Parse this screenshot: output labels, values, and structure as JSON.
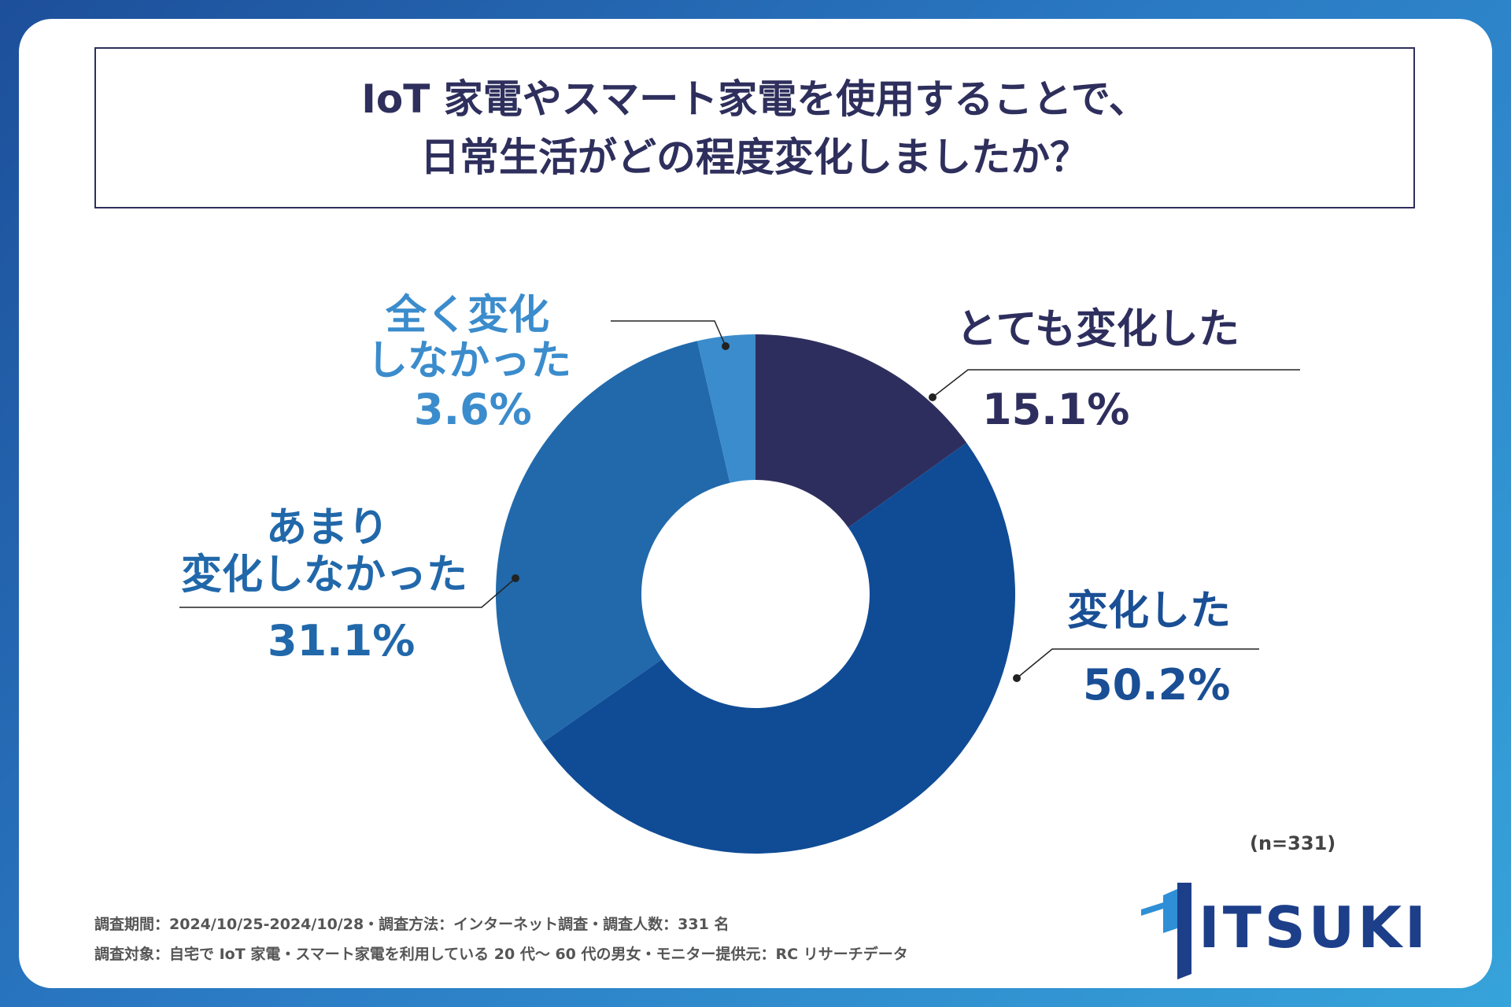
{
  "title": {
    "line1": "IoT 家電やスマート家電を使用することで、",
    "line2": "日常生活がどの程度変化しましたか？"
  },
  "chart_data": {
    "type": "pie",
    "style": "donut",
    "categories": [
      "とても変化した",
      "変化した",
      "あまり変化しなかった",
      "全く変化しなかった"
    ],
    "values": [
      15.1,
      50.2,
      31.1,
      3.6
    ],
    "value_labels": [
      "15.1%",
      "50.2%",
      "31.1%",
      "3.6%"
    ],
    "colors": [
      "#2e2e5e",
      "#104c96",
      "#2169ab",
      "#3b8ccc"
    ],
    "label_lines": {
      "very": "とても変化した",
      "changed": "変化した",
      "notmuch1": "あまり",
      "notmuch2": "変化しなかった",
      "none1": "全く変化",
      "none2": "しなかった"
    },
    "n_label": "(n=331)"
  },
  "footer": {
    "line1": "調査期間：2024/10/25-2024/10/28・調査方法：インターネット調査・調査人数：331 名",
    "line2": "調査対象：自宅で IoT 家電・スマート家電を利用している 20 代～ 60 代の男女・モニター提供元：RC リサーチデータ"
  },
  "logo": {
    "text": "ITSUKI"
  },
  "colors": {
    "title": "#2e2f5c",
    "background_gradient_start": "#1d4f9a",
    "background_gradient_end": "#36a3da"
  }
}
